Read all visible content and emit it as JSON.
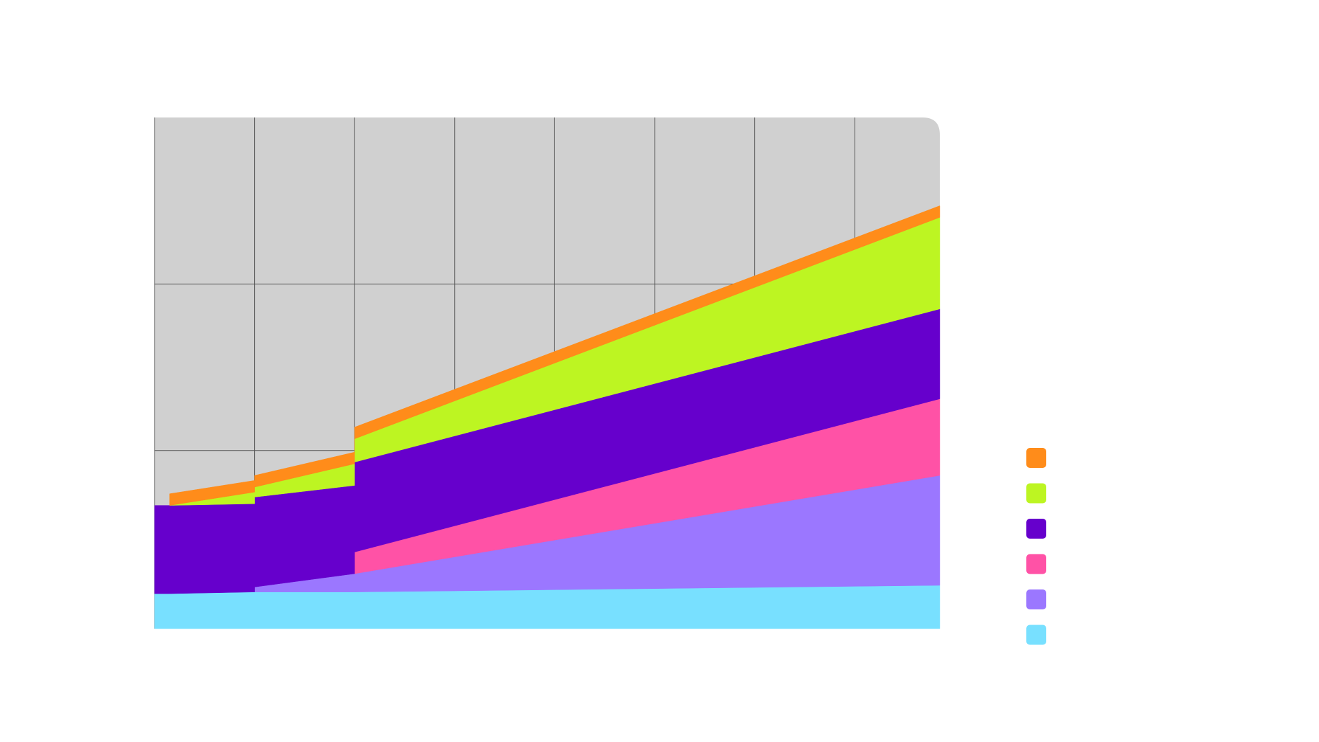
{
  "chart_data": {
    "type": "stacked-area",
    "x": [
      0,
      0.15,
      1,
      1,
      2,
      2,
      7.85
    ],
    "xlim": [
      0,
      7.85
    ],
    "xticks": [
      0,
      1,
      2,
      3,
      4,
      5,
      6,
      7
    ],
    "ylim": [
      0,
      3.07
    ],
    "yticks": [
      1.07,
      2.07
    ],
    "grid": true,
    "legend": "right",
    "series": [
      {
        "color": "#78e0ff",
        "values": [
          0.21,
          0.21,
          0.22,
          0.22,
          0.22,
          0.22,
          0.26
        ]
      },
      {
        "color": "#9b77ff",
        "values": [
          null,
          null,
          null,
          0.03,
          0.11,
          0.11,
          0.66
        ]
      },
      {
        "color": "#ff52a6",
        "values": [
          null,
          null,
          null,
          null,
          null,
          0.13,
          0.46
        ]
      },
      {
        "color": "#6600cc",
        "values": [
          0.53,
          0.53,
          0.53,
          0.54,
          0.53,
          0.54,
          0.54
        ]
      },
      {
        "color": "#bdf522",
        "values": [
          null,
          0,
          0.07,
          0.06,
          0.13,
          0.14,
          0.55
        ]
      },
      {
        "color": "#ff8c1a",
        "values": [
          null,
          0.07,
          0.07,
          0.07,
          0.07,
          0.07,
          0.07
        ]
      }
    ]
  }
}
